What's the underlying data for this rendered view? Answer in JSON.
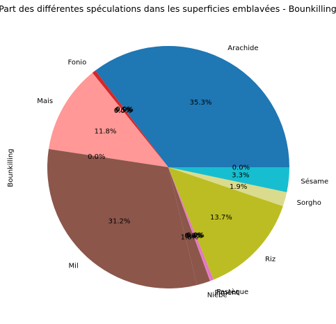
{
  "chart_data": {
    "type": "pie",
    "title": "Part des différentes spéculations dans les superficies emblavées - Bounkilling",
    "ylabel": "Bounkilling",
    "start_angle_deg": 0,
    "direction": "counterclockwise",
    "slices": [
      {
        "label": "Arachide",
        "value": 35.3,
        "pct_label": "35.3%",
        "color": "#1f77b4"
      },
      {
        "label": "",
        "value": 0.0,
        "pct_label": "0.0%",
        "color": "#ff7f0e"
      },
      {
        "label": "",
        "value": 0.0,
        "pct_label": "0.0%",
        "color": "#2ca02c"
      },
      {
        "label": "Fonio",
        "value": 0.5,
        "pct_label": "0.5%",
        "color": "#d62728"
      },
      {
        "label": "",
        "value": 0.0,
        "pct_label": "0.0%",
        "color": "#9467bd"
      },
      {
        "label": "Mais",
        "value": 11.8,
        "pct_label": "11.8%",
        "color": "#ff9896"
      },
      {
        "label": "",
        "value": 0.0,
        "pct_label": "0.0%",
        "color": "#c5b0d5"
      },
      {
        "label": "Mil",
        "value": 31.2,
        "pct_label": "31.2%",
        "color": "#8c564b"
      },
      {
        "label": "Niebe",
        "value": 1.8,
        "pct_label": "1.8%",
        "color": "#8c564b"
      },
      {
        "label": "",
        "value": 0.0,
        "pct_label": "0.0%",
        "color": "#e377c2"
      },
      {
        "label": "Piment",
        "value": 0.1,
        "pct_label": "0.1%",
        "color": "#e377c2"
      },
      {
        "label": "Pastèque",
        "value": 0.4,
        "pct_label": "0.4%",
        "color": "#e377c2"
      },
      {
        "label": "",
        "value": 0.0,
        "pct_label": "0.0%",
        "color": "#7f7f7f"
      },
      {
        "label": "Riz",
        "value": 13.7,
        "pct_label": "13.7%",
        "color": "#bcbd22"
      },
      {
        "label": "Sorgho",
        "value": 1.9,
        "pct_label": "1.9%",
        "color": "#dbdb8d"
      },
      {
        "label": "Sésame",
        "value": 3.3,
        "pct_label": "3.3%",
        "color": "#17becf"
      },
      {
        "label": "",
        "value": 0.0,
        "pct_label": "0.0%",
        "color": "#9edae5"
      }
    ]
  }
}
